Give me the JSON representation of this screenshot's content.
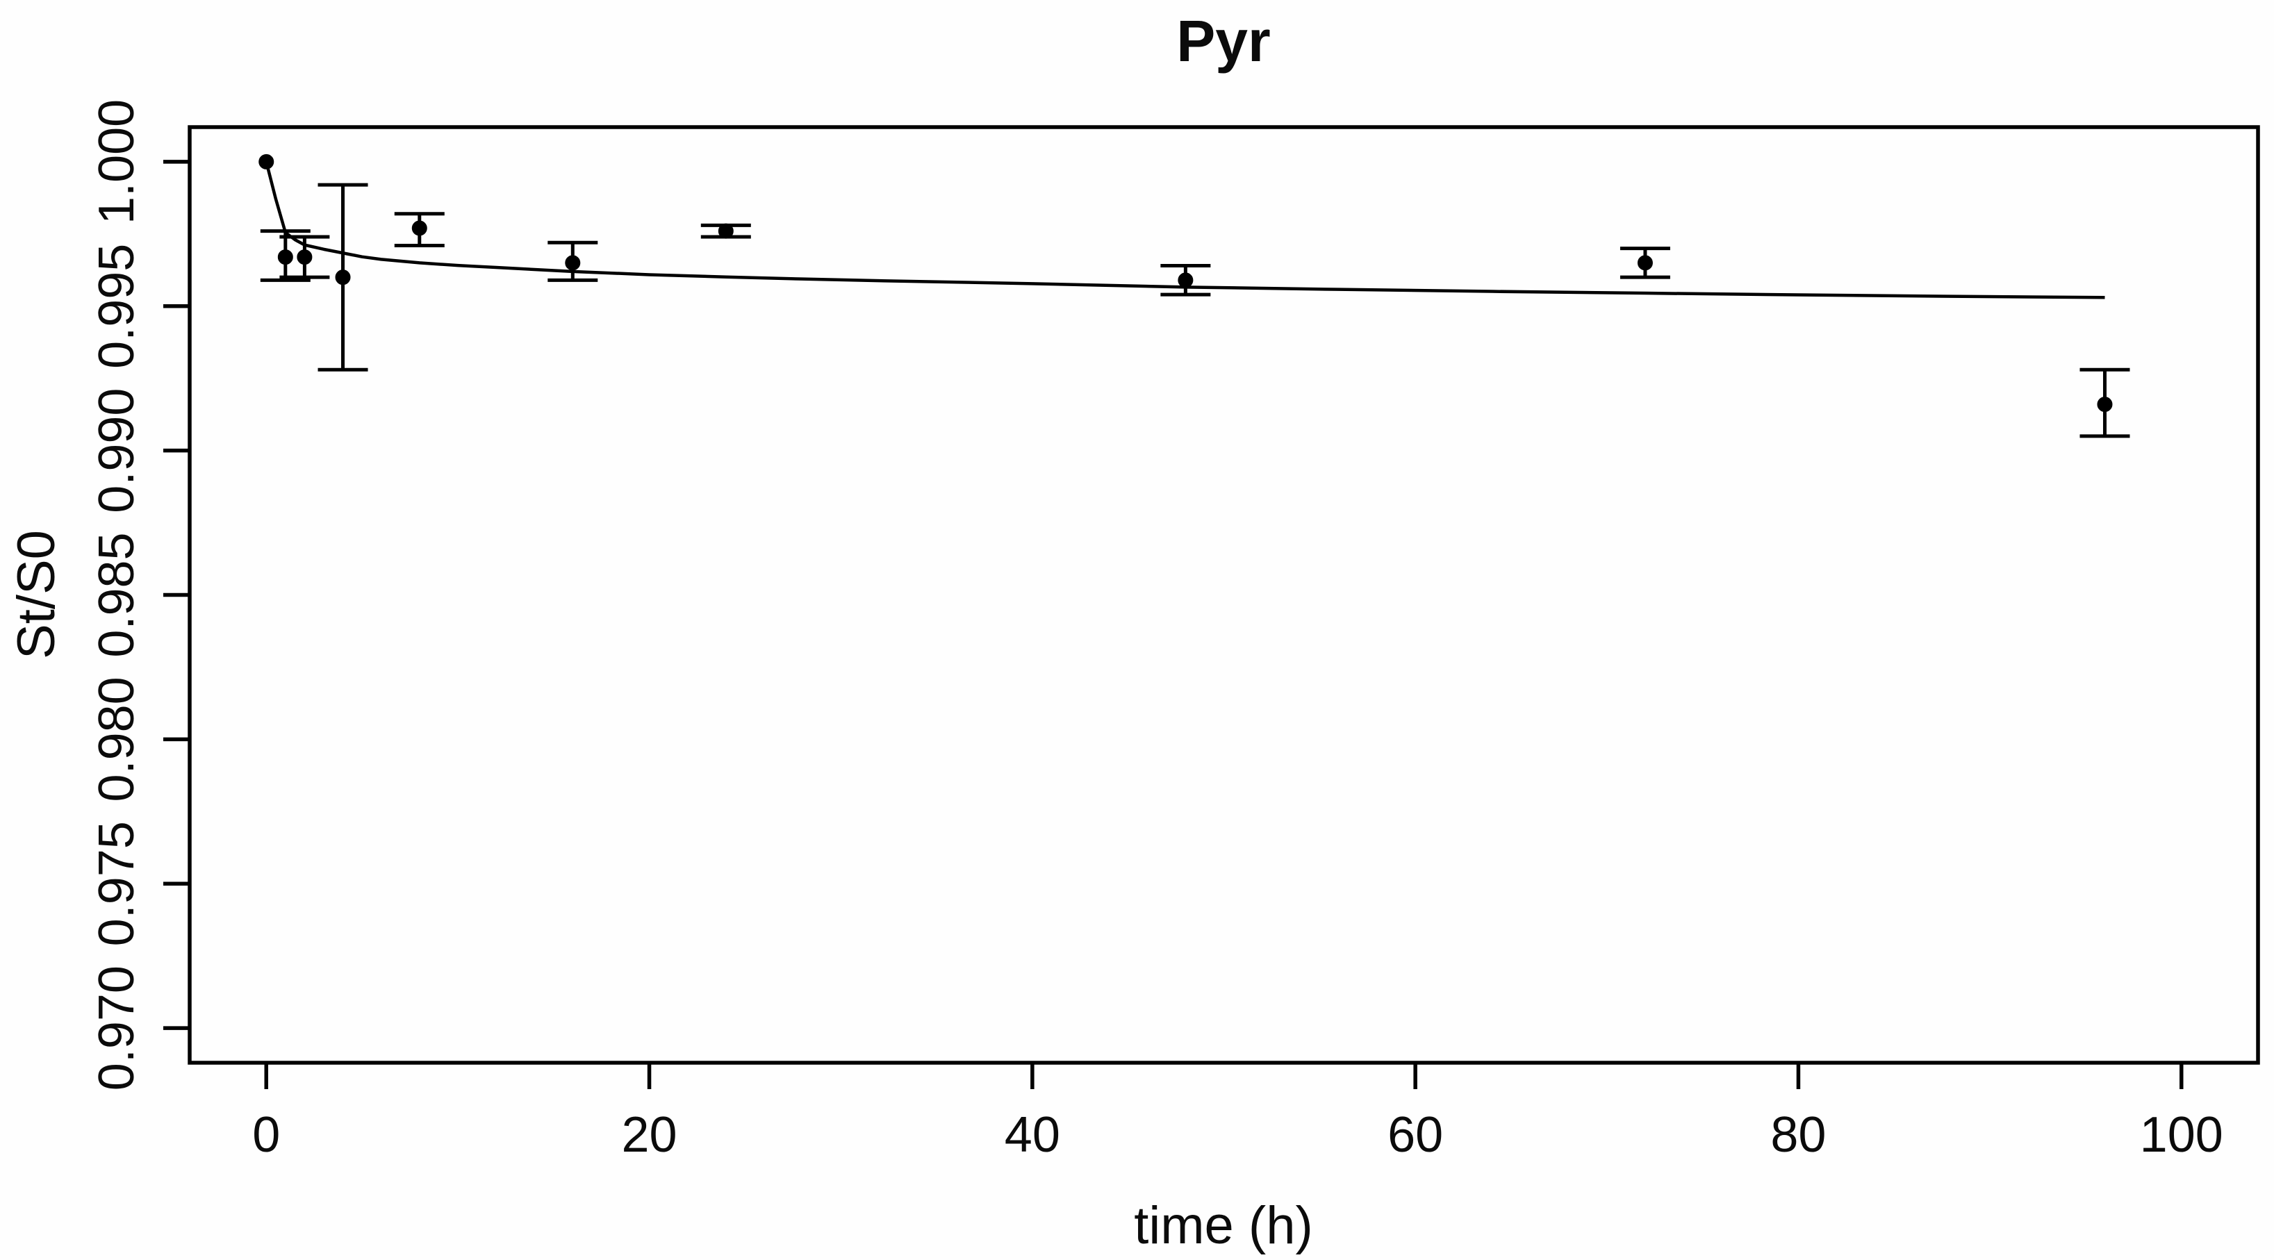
{
  "title": "Pyr",
  "chart_data": {
    "type": "scatter",
    "title": "Pyr",
    "xlabel": "time (h)",
    "ylabel": "St/S0",
    "grid": false,
    "legend": null,
    "line_color": "#000000",
    "marker_color": "#000000",
    "xlim": [
      -4,
      104
    ],
    "ylim": [
      0.9688,
      1.0012
    ],
    "x_ticks": [
      0,
      20,
      40,
      60,
      80,
      100
    ],
    "x_tick_labels": [
      "0",
      "20",
      "40",
      "60",
      "80",
      "100"
    ],
    "y_ticks": [
      0.97,
      0.975,
      0.98,
      0.985,
      0.99,
      0.995,
      1.0
    ],
    "y_tick_labels": [
      "0.970",
      "0.975",
      "0.980",
      "0.985",
      "0.990",
      "0.995",
      "1.000"
    ],
    "points": [
      {
        "t": 0,
        "y": 1.0,
        "lo": null,
        "hi": null
      },
      {
        "t": 1,
        "y": 0.9967,
        "lo": 0.9959,
        "hi": 0.9976
      },
      {
        "t": 2,
        "y": 0.9967,
        "lo": 0.996,
        "hi": 0.9974
      },
      {
        "t": 4,
        "y": 0.996,
        "lo": 0.9928,
        "hi": 0.9992
      },
      {
        "t": 8,
        "y": 0.9977,
        "lo": 0.9971,
        "hi": 0.9982
      },
      {
        "t": 16,
        "y": 0.9965,
        "lo": 0.9959,
        "hi": 0.9972
      },
      {
        "t": 24,
        "y": 0.9976,
        "lo": 0.9974,
        "hi": 0.9978
      },
      {
        "t": 48,
        "y": 0.9959,
        "lo": 0.9954,
        "hi": 0.9964
      },
      {
        "t": 72,
        "y": 0.9965,
        "lo": 0.996,
        "hi": 0.997
      },
      {
        "t": 96,
        "y": 0.9916,
        "lo": 0.9905,
        "hi": 0.9928
      }
    ],
    "fit_curve": {
      "t": [
        0,
        0.5,
        1,
        1.5,
        2,
        3,
        4,
        5,
        6,
        8,
        10,
        12,
        16,
        20,
        24,
        28,
        32,
        40,
        48,
        56,
        64,
        72,
        80,
        88,
        96
      ],
      "y": [
        1.0,
        0.9987,
        0.99755,
        0.9973,
        0.99712,
        0.99697,
        0.99684,
        0.99671,
        0.99662,
        0.9965,
        0.99641,
        0.99634,
        0.9962,
        0.99609,
        0.99601,
        0.99594,
        0.99588,
        0.99578,
        0.99566,
        0.99558,
        0.99551,
        0.99545,
        0.99539,
        0.99534,
        0.9953
      ]
    }
  }
}
